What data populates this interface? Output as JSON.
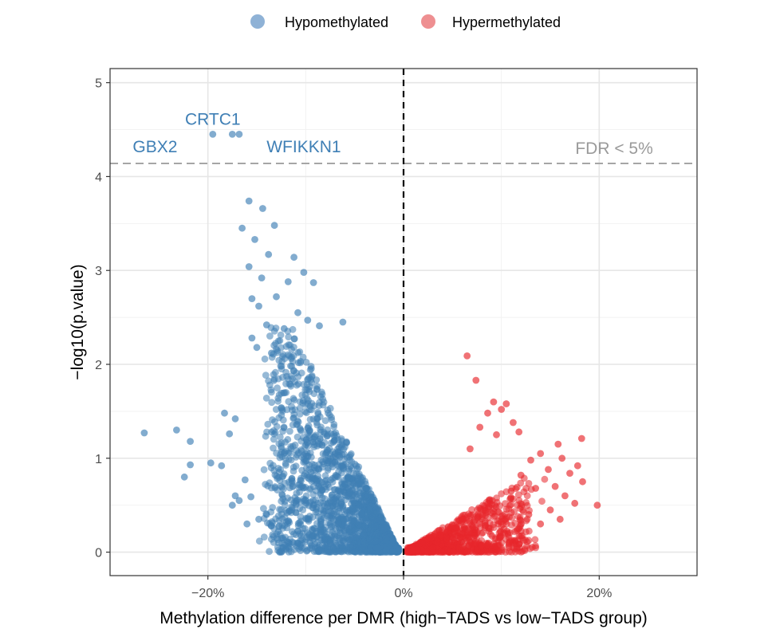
{
  "chart_data": {
    "type": "scatter",
    "title": "",
    "xlabel": "Methylation difference per DMR (high−TADS vs low−TADS group)",
    "ylabel": "−log10(p.value)",
    "xlim": [
      -0.3,
      0.3
    ],
    "ylim": [
      -0.25,
      5.15
    ],
    "x_ticks": [
      {
        "value": -0.2,
        "label": "−20%"
      },
      {
        "value": 0.0,
        "label": "0%"
      },
      {
        "value": 0.2,
        "label": "20%"
      }
    ],
    "y_ticks": [
      {
        "value": 0,
        "label": "0"
      },
      {
        "value": 1,
        "label": "1"
      },
      {
        "value": 2,
        "label": "2"
      },
      {
        "value": 3,
        "label": "3"
      },
      {
        "value": 4,
        "label": "4"
      },
      {
        "value": 5,
        "label": "5"
      }
    ],
    "grid": true,
    "legend": {
      "position": "top",
      "entries": [
        {
          "label": "Hypomethylated",
          "color": "#8fb2d6"
        },
        {
          "label": "Hypermethylated",
          "color": "#ee8f91"
        }
      ]
    },
    "threshold": {
      "y": 4.14,
      "label": "FDR < 5%",
      "style": "dashed",
      "color": "#a6a6a6"
    },
    "zero_line": {
      "x": 0,
      "style": "dashed",
      "color": "#000000"
    },
    "annotations": [
      {
        "text": "CRTC1",
        "x": -0.195,
        "y": 4.61
      },
      {
        "text": "GBX2",
        "x": -0.254,
        "y": 4.32
      },
      {
        "text": "WFIKKN1",
        "x": -0.102,
        "y": 4.32
      }
    ],
    "series": [
      {
        "name": "Hypomethylated",
        "color": "#3f7fb5",
        "points": [
          [
            -0.195,
            4.45
          ],
          [
            -0.175,
            4.45
          ],
          [
            -0.168,
            4.45
          ],
          [
            -0.158,
            3.74
          ],
          [
            -0.144,
            3.66
          ],
          [
            -0.165,
            3.45
          ],
          [
            -0.132,
            3.48
          ],
          [
            -0.152,
            3.33
          ],
          [
            -0.138,
            3.17
          ],
          [
            -0.112,
            3.14
          ],
          [
            -0.158,
            3.04
          ],
          [
            -0.102,
            2.98
          ],
          [
            -0.145,
            2.92
          ],
          [
            -0.118,
            2.88
          ],
          [
            -0.092,
            2.87
          ],
          [
            -0.155,
            2.7
          ],
          [
            -0.13,
            2.72
          ],
          [
            -0.148,
            2.62
          ],
          [
            -0.108,
            2.55
          ],
          [
            -0.098,
            2.47
          ],
          [
            -0.14,
            2.42
          ],
          [
            -0.122,
            2.38
          ],
          [
            -0.086,
            2.41
          ],
          [
            -0.155,
            2.28
          ],
          [
            -0.15,
            2.18
          ],
          [
            -0.135,
            2.12
          ],
          [
            -0.062,
            2.45
          ],
          [
            -0.265,
            1.27
          ],
          [
            -0.232,
            1.3
          ],
          [
            -0.218,
            1.18
          ],
          [
            -0.197,
            0.95
          ],
          [
            -0.186,
            0.92
          ],
          [
            -0.218,
            0.93
          ],
          [
            -0.224,
            0.8
          ],
          [
            -0.183,
            1.48
          ],
          [
            -0.172,
            1.42
          ],
          [
            -0.178,
            1.26
          ],
          [
            -0.162,
            0.77
          ],
          [
            -0.172,
            0.6
          ],
          [
            -0.168,
            0.55
          ],
          [
            -0.175,
            0.5
          ],
          [
            -0.156,
            0.59
          ],
          [
            -0.16,
            0.3
          ],
          [
            -0.148,
            0.35
          ],
          [
            -0.14,
            0.4
          ],
          [
            -0.135,
            0.28
          ],
          [
            -0.128,
            0.22
          ]
        ]
      },
      {
        "name": "Hypermethylated",
        "color": "#e8272b",
        "points": [
          [
            0.065,
            2.09
          ],
          [
            0.074,
            1.83
          ],
          [
            0.092,
            1.6
          ],
          [
            0.105,
            1.58
          ],
          [
            0.1,
            1.52
          ],
          [
            0.086,
            1.48
          ],
          [
            0.112,
            1.38
          ],
          [
            0.078,
            1.33
          ],
          [
            0.118,
            1.28
          ],
          [
            0.095,
            1.25
          ],
          [
            0.182,
            1.21
          ],
          [
            0.158,
            1.15
          ],
          [
            0.068,
            1.1
          ],
          [
            0.14,
            1.05
          ],
          [
            0.162,
            1.0
          ],
          [
            0.13,
            0.98
          ],
          [
            0.178,
            0.92
          ],
          [
            0.148,
            0.88
          ],
          [
            0.17,
            0.84
          ],
          [
            0.12,
            0.82
          ],
          [
            0.183,
            0.75
          ],
          [
            0.155,
            0.7
          ],
          [
            0.135,
            0.68
          ],
          [
            0.11,
            0.65
          ],
          [
            0.165,
            0.6
          ],
          [
            0.198,
            0.5
          ],
          [
            0.175,
            0.52
          ],
          [
            0.15,
            0.45
          ],
          [
            0.128,
            0.4
          ],
          [
            0.14,
            0.3
          ],
          [
            0.16,
            0.35
          ],
          [
            0.118,
            0.25
          ]
        ]
      }
    ]
  }
}
